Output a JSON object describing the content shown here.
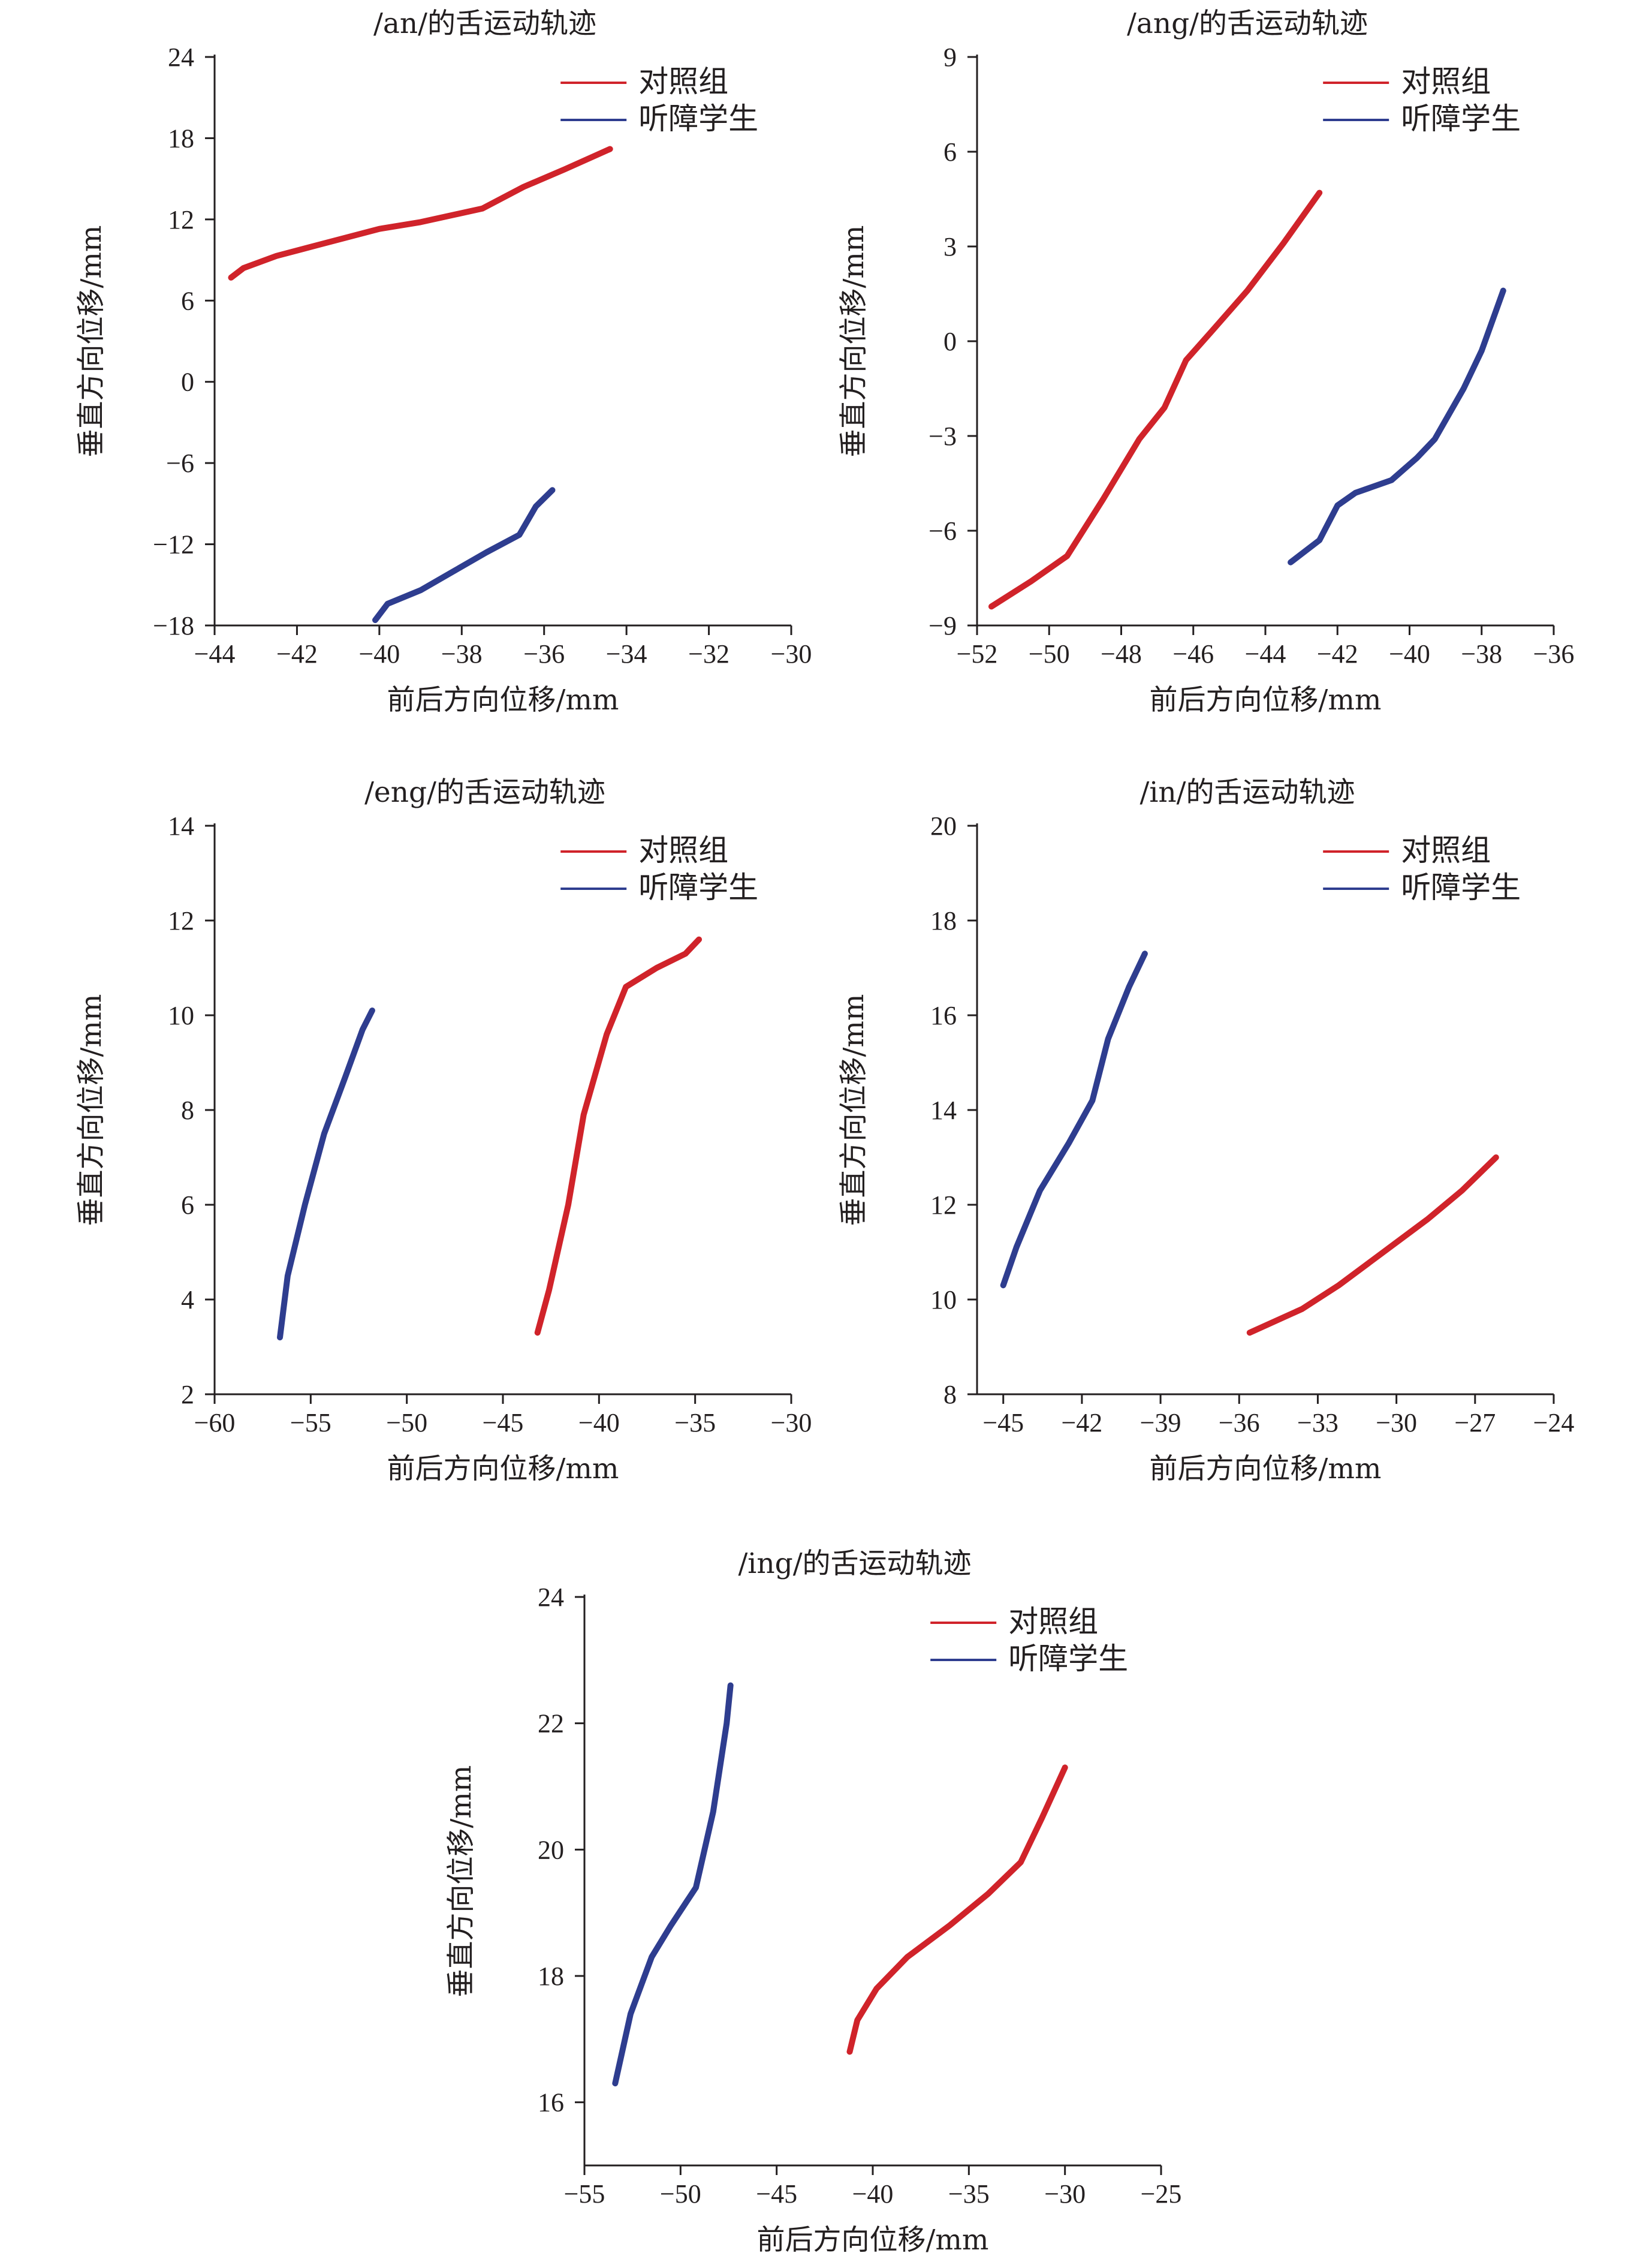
{
  "colors": {
    "control": "#d0232a",
    "hearing_impaired": "#2e3d8f",
    "axis": "#231f20"
  },
  "chart_data": [
    {
      "type": "line",
      "title": "/an/的舌运动轨迹",
      "xlabel": "前后方向位移/mm",
      "ylabel": "垂直方向位移/mm",
      "xlim": [
        -44,
        -30
      ],
      "ylim": [
        -18,
        24
      ],
      "xticks": [
        -44,
        -42,
        -40,
        -38,
        -36,
        -34,
        -32,
        -30
      ],
      "yticks": [
        -18,
        -12,
        -6,
        0,
        6,
        12,
        18,
        24
      ],
      "legend": "top-right",
      "series": [
        {
          "name": "对照组",
          "color": "#d0232a",
          "points": [
            [
              -43.6,
              7.7
            ],
            [
              -43.3,
              8.4
            ],
            [
              -42.5,
              9.3
            ],
            [
              -41.5,
              10.1
            ],
            [
              -40.0,
              11.3
            ],
            [
              -39.0,
              11.8
            ],
            [
              -37.5,
              12.8
            ],
            [
              -36.5,
              14.4
            ],
            [
              -35.5,
              15.7
            ],
            [
              -34.4,
              17.2
            ]
          ]
        },
        {
          "name": "听障学生",
          "color": "#2e3d8f",
          "points": [
            [
              -40.1,
              -17.6
            ],
            [
              -39.8,
              -16.4
            ],
            [
              -39.0,
              -15.4
            ],
            [
              -38.2,
              -14.0
            ],
            [
              -37.4,
              -12.6
            ],
            [
              -36.6,
              -11.3
            ],
            [
              -36.2,
              -9.2
            ],
            [
              -35.8,
              -8.0
            ]
          ]
        }
      ]
    },
    {
      "type": "line",
      "title": "/ang/的舌运动轨迹",
      "xlabel": "前后方向位移/mm",
      "ylabel": "垂直方向位移/mm",
      "xlim": [
        -52,
        -36
      ],
      "ylim": [
        -9,
        9
      ],
      "xticks": [
        -52,
        -50,
        -48,
        -46,
        -44,
        -42,
        -40,
        -38,
        -36
      ],
      "yticks": [
        -9,
        -6,
        -3,
        0,
        3,
        6,
        9
      ],
      "legend": "top-right",
      "series": [
        {
          "name": "对照组",
          "color": "#d0232a",
          "points": [
            [
              -51.6,
              -8.4
            ],
            [
              -50.5,
              -7.6
            ],
            [
              -49.5,
              -6.8
            ],
            [
              -48.5,
              -5.0
            ],
            [
              -47.5,
              -3.1
            ],
            [
              -46.8,
              -2.1
            ],
            [
              -46.2,
              -0.6
            ],
            [
              -45.5,
              0.3
            ],
            [
              -44.5,
              1.6
            ],
            [
              -43.5,
              3.1
            ],
            [
              -42.5,
              4.7
            ]
          ]
        },
        {
          "name": "听障学生",
          "color": "#2e3d8f",
          "points": [
            [
              -43.3,
              -7.0
            ],
            [
              -42.5,
              -6.3
            ],
            [
              -42.0,
              -5.2
            ],
            [
              -41.5,
              -4.8
            ],
            [
              -40.5,
              -4.4
            ],
            [
              -39.8,
              -3.7
            ],
            [
              -39.3,
              -3.1
            ],
            [
              -38.5,
              -1.5
            ],
            [
              -38.0,
              -0.3
            ],
            [
              -37.4,
              1.6
            ]
          ]
        }
      ]
    },
    {
      "type": "line",
      "title": "/eng/的舌运动轨迹",
      "xlabel": "前后方向位移/mm",
      "ylabel": "垂直方向位移/mm",
      "xlim": [
        -60,
        -30
      ],
      "ylim": [
        2,
        14
      ],
      "xticks": [
        -60,
        -55,
        -50,
        -45,
        -40,
        -35,
        -30
      ],
      "yticks": [
        2,
        4,
        6,
        8,
        10,
        12,
        14
      ],
      "legend": "top-right",
      "series": [
        {
          "name": "对照组",
          "color": "#d0232a",
          "points": [
            [
              -43.2,
              3.3
            ],
            [
              -42.6,
              4.2
            ],
            [
              -41.6,
              6.0
            ],
            [
              -40.8,
              7.9
            ],
            [
              -39.6,
              9.6
            ],
            [
              -38.6,
              10.6
            ],
            [
              -37.0,
              11.0
            ],
            [
              -35.5,
              11.3
            ],
            [
              -34.8,
              11.6
            ]
          ]
        },
        {
          "name": "听障学生",
          "color": "#2e3d8f",
          "points": [
            [
              -56.6,
              3.2
            ],
            [
              -56.2,
              4.5
            ],
            [
              -55.3,
              6.0
            ],
            [
              -54.3,
              7.5
            ],
            [
              -53.2,
              8.7
            ],
            [
              -52.3,
              9.7
            ],
            [
              -51.8,
              10.1
            ]
          ]
        }
      ]
    },
    {
      "type": "line",
      "title": "/in/的舌运动轨迹",
      "xlabel": "前后方向位移/mm",
      "ylabel": "垂直方向位移/mm",
      "xlim": [
        -46,
        -24
      ],
      "ylim": [
        8,
        20
      ],
      "xticks": [
        -45,
        -42,
        -39,
        -36,
        -33,
        -30,
        -27,
        -24
      ],
      "yticks": [
        8,
        10,
        12,
        14,
        16,
        18,
        20
      ],
      "legend": "top-right",
      "series": [
        {
          "name": "对照组",
          "color": "#d0232a",
          "points": [
            [
              -35.6,
              9.3
            ],
            [
              -33.6,
              9.8
            ],
            [
              -32.2,
              10.3
            ],
            [
              -30.5,
              11.0
            ],
            [
              -28.8,
              11.7
            ],
            [
              -27.5,
              12.3
            ],
            [
              -26.2,
              13.0
            ]
          ]
        },
        {
          "name": "听障学生",
          "color": "#2e3d8f",
          "points": [
            [
              -45.0,
              10.3
            ],
            [
              -44.5,
              11.1
            ],
            [
              -43.6,
              12.3
            ],
            [
              -42.5,
              13.3
            ],
            [
              -41.6,
              14.2
            ],
            [
              -41.0,
              15.5
            ],
            [
              -40.2,
              16.6
            ],
            [
              -39.6,
              17.3
            ]
          ]
        }
      ]
    },
    {
      "type": "line",
      "title": "/ing/的舌运动轨迹",
      "xlabel": "前后方向位移/mm",
      "ylabel": "垂直方向位移/mm",
      "xlim": [
        -55,
        -25
      ],
      "ylim": [
        15,
        24
      ],
      "xticks": [
        -55,
        -50,
        -45,
        -40,
        -35,
        -30,
        -25
      ],
      "yticks": [
        16,
        18,
        20,
        22,
        24
      ],
      "legend": "top-right",
      "series": [
        {
          "name": "对照组",
          "color": "#d0232a",
          "points": [
            [
              -41.2,
              16.8
            ],
            [
              -40.8,
              17.3
            ],
            [
              -39.8,
              17.8
            ],
            [
              -38.2,
              18.3
            ],
            [
              -36.0,
              18.8
            ],
            [
              -34.0,
              19.3
            ],
            [
              -32.3,
              19.8
            ],
            [
              -31.2,
              20.5
            ],
            [
              -30.0,
              21.3
            ]
          ]
        },
        {
          "name": "听障学生",
          "color": "#2e3d8f",
          "points": [
            [
              -53.4,
              16.3
            ],
            [
              -52.6,
              17.4
            ],
            [
              -51.5,
              18.3
            ],
            [
              -50.5,
              18.8
            ],
            [
              -49.2,
              19.4
            ],
            [
              -48.3,
              20.6
            ],
            [
              -47.6,
              22.0
            ],
            [
              -47.4,
              22.6
            ]
          ]
        }
      ]
    }
  ]
}
